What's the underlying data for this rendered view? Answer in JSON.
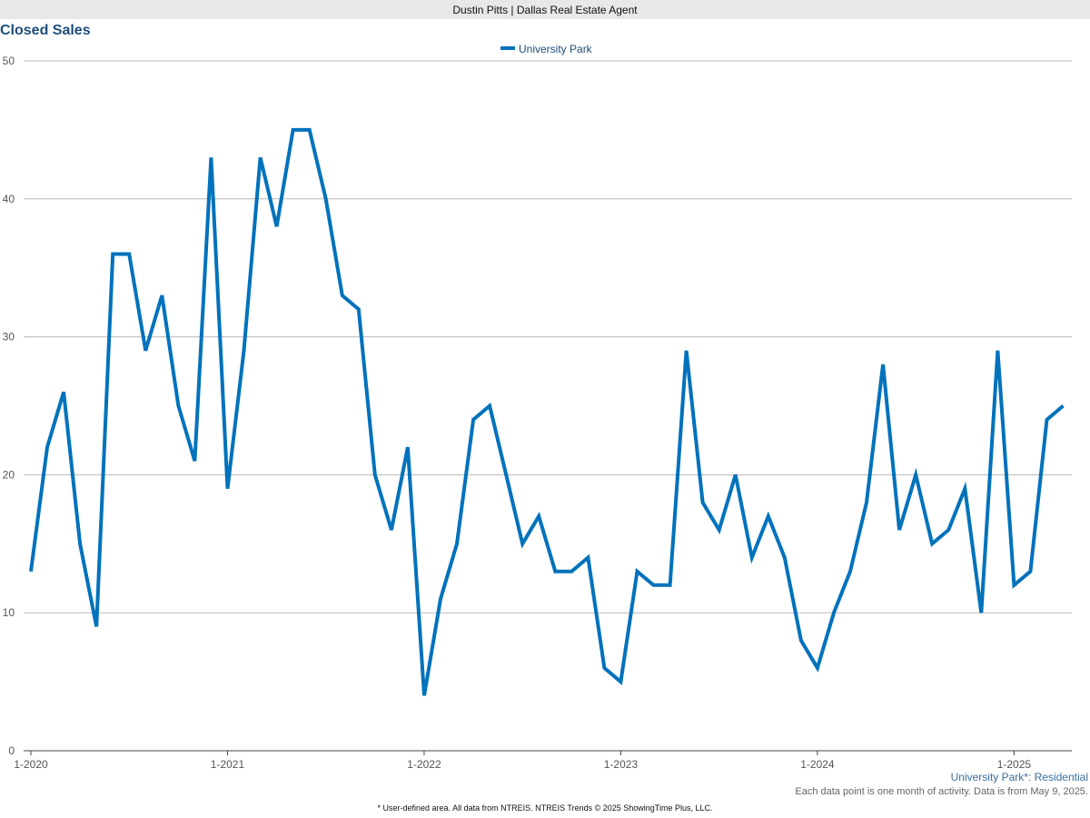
{
  "header": {
    "title": "Dustin Pitts | Dallas Real Estate Agent"
  },
  "chart_title": "Closed Sales",
  "footer": {
    "area_label": "University Park*: Residential",
    "note": "Each data point is one month of activity. Data is from May 9, 2025.",
    "credit": "* User-defined area. All data from NTREIS. NTREIS Trends © 2025 ShowingTime Plus, LLC."
  },
  "colors": {
    "series": "#0072bc",
    "title": "#1f4e79"
  },
  "chart_data": {
    "type": "line",
    "title": "Closed Sales",
    "xlabel": "",
    "ylabel": "",
    "ylim": [
      0,
      50
    ],
    "y_ticks": [
      0,
      10,
      20,
      30,
      40,
      50
    ],
    "x_tick_labels": [
      "1-2020",
      "1-2021",
      "1-2022",
      "1-2023",
      "1-2024",
      "1-2025"
    ],
    "x_start": "2020-01",
    "x_end": "2025-04",
    "grid": true,
    "legend_position": "top-center",
    "series": [
      {
        "name": "University Park",
        "values": [
          13,
          22,
          26,
          15,
          9,
          36,
          36,
          29,
          33,
          25,
          21,
          43,
          19,
          29,
          43,
          38,
          45,
          45,
          40,
          33,
          32,
          20,
          16,
          22,
          4,
          11,
          15,
          24,
          25,
          20,
          15,
          17,
          13,
          13,
          14,
          6,
          5,
          13,
          12,
          12,
          29,
          18,
          16,
          20,
          14,
          17,
          14,
          8,
          6,
          10,
          13,
          18,
          28,
          16,
          20,
          15,
          16,
          19,
          10,
          29,
          12,
          13,
          24,
          25
        ]
      }
    ]
  }
}
